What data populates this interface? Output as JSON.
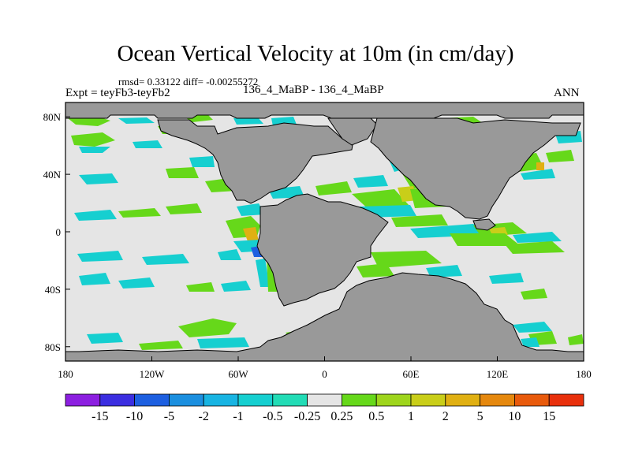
{
  "title": "Ocean Vertical Velocity at 10m (in cm/day)",
  "stats": "rmsd= 0.33122  diff= -0.00255272",
  "expt_label": "Expt = teyFb3-teyFb2",
  "case_label": "136_4_MaBP - 136_4_MaBP",
  "season": "ANN",
  "colors": {
    "land": "#999999",
    "ocean_background": "#e5e5e5"
  },
  "chart_data": {
    "type": "heatmap",
    "title": "Ocean Vertical Velocity at 10m (in cm/day)",
    "projection": "cylindrical-equidistant",
    "lon_range": [
      -180,
      180
    ],
    "lat_range": [
      -90,
      90
    ],
    "x_ticks": [
      {
        "value": -180,
        "label": "180"
      },
      {
        "value": -120,
        "label": "120W"
      },
      {
        "value": -60,
        "label": "60W"
      },
      {
        "value": 0,
        "label": "0"
      },
      {
        "value": 60,
        "label": "60E"
      },
      {
        "value": 120,
        "label": "120E"
      },
      {
        "value": 180,
        "label": "180"
      }
    ],
    "y_ticks": [
      {
        "value": 80,
        "label": "80N"
      },
      {
        "value": 40,
        "label": "40N"
      },
      {
        "value": 0,
        "label": "0"
      },
      {
        "value": -40,
        "label": "40S"
      },
      {
        "value": -80,
        "label": "80S"
      }
    ],
    "colorbar": {
      "units": "cm/day",
      "levels": [
        "-15",
        "-10",
        "-5",
        "-2",
        "-1",
        "-0.5",
        "-0.25",
        "0.25",
        "0.5",
        "1",
        "2",
        "5",
        "10",
        "15"
      ],
      "colors": [
        "#8c1fe0",
        "#3b2ee0",
        "#1d5fe0",
        "#1b8fdf",
        "#18b4e2",
        "#16cfd0",
        "#22dcb6",
        "#e5e5e5",
        "#66d81a",
        "#9ed51c",
        "#c9ce19",
        "#e0b012",
        "#e5880e",
        "#e85a0c",
        "#e8300c"
      ]
    }
  }
}
